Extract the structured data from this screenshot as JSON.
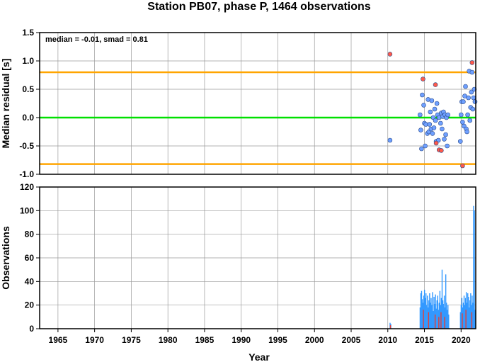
{
  "chart_data": {
    "title": "Station PB07, phase P, 1464 observations",
    "xlabel": "Year",
    "xlim": [
      1962.5,
      2022.0
    ],
    "xticks": [
      1965,
      1970,
      1975,
      1980,
      1985,
      1990,
      1995,
      2000,
      2005,
      2010,
      2015,
      2020
    ],
    "panels": [
      {
        "type": "scatter",
        "ylabel": "Median residual [s]",
        "ylim": [
          -1.0,
          1.5
        ],
        "yticks": [
          "-1.0",
          "-0.5",
          "0.0",
          "0.5",
          "1.0",
          "1.5"
        ],
        "grid": true,
        "annotation": "median = -0.01, smad = 0.81",
        "lines": [
          {
            "y": 0.8,
            "color": "#ffa500"
          },
          {
            "y": 0.0,
            "color": "#00e000"
          },
          {
            "y": -0.82,
            "color": "#ffa500"
          }
        ],
        "series": [
          {
            "marker_color": "#6fa0ff",
            "points": [
              [
                2010.3,
                -0.4
              ],
              [
                2014.4,
                0.05
              ],
              [
                2014.5,
                -0.22
              ],
              [
                2014.6,
                -0.55
              ],
              [
                2014.7,
                0.4
              ],
              [
                2014.9,
                0.22
              ],
              [
                2015.0,
                -0.1
              ],
              [
                2015.1,
                -0.5
              ],
              [
                2015.2,
                -0.12
              ],
              [
                2015.4,
                -0.28
              ],
              [
                2015.5,
                0.32
              ],
              [
                2015.6,
                -0.25
              ],
              [
                2015.7,
                -0.12
              ],
              [
                2015.8,
                0.1
              ],
              [
                2015.9,
                -0.2
              ],
              [
                2016.0,
                0.3
              ],
              [
                2016.1,
                -0.28
              ],
              [
                2016.2,
                0.0
              ],
              [
                2016.3,
                -0.18
              ],
              [
                2016.4,
                0.15
              ],
              [
                2016.5,
                -0.05
              ],
              [
                2016.6,
                -0.42
              ],
              [
                2016.7,
                0.25
              ],
              [
                2016.8,
                0.05
              ],
              [
                2016.9,
                -0.4
              ],
              [
                2017.0,
                0.0
              ],
              [
                2017.2,
                -0.1
              ],
              [
                2017.3,
                0.08
              ],
              [
                2017.4,
                -0.2
              ],
              [
                2017.5,
                0.02
              ],
              [
                2017.6,
                0.1
              ],
              [
                2017.7,
                -0.38
              ],
              [
                2017.8,
                0.05
              ],
              [
                2017.9,
                -0.3
              ],
              [
                2018.0,
                0.0
              ],
              [
                2018.1,
                -0.5
              ],
              [
                2018.2,
                0.05
              ],
              [
                2019.9,
                -0.42
              ],
              [
                2020.0,
                0.05
              ],
              [
                2020.1,
                0.28
              ],
              [
                2020.2,
                -0.08
              ],
              [
                2020.3,
                0.28
              ],
              [
                2020.4,
                -0.15
              ],
              [
                2020.5,
                0.38
              ],
              [
                2020.6,
                0.55
              ],
              [
                2020.7,
                -0.2
              ],
              [
                2020.8,
                -0.25
              ],
              [
                2020.9,
                0.05
              ],
              [
                2021.0,
                0.35
              ],
              [
                2021.1,
                0.82
              ],
              [
                2021.2,
                -0.05
              ],
              [
                2021.3,
                0.18
              ],
              [
                2021.4,
                0.45
              ],
              [
                2021.5,
                0.8
              ],
              [
                2021.6,
                0.15
              ],
              [
                2021.7,
                0.35
              ],
              [
                2021.8,
                0.5
              ],
              [
                2021.9,
                0.28
              ]
            ]
          },
          {
            "marker_color": "#ff5a4a",
            "points": [
              [
                2010.3,
                1.12
              ],
              [
                2014.8,
                0.68
              ],
              [
                2016.5,
                0.58
              ],
              [
                2016.6,
                -0.45
              ],
              [
                2017.0,
                -0.57
              ],
              [
                2017.3,
                -0.58
              ],
              [
                2020.2,
                -0.85
              ],
              [
                2021.5,
                0.97
              ]
            ]
          }
        ]
      },
      {
        "type": "bar",
        "ylabel": "Observations",
        "ylim": [
          0,
          120
        ],
        "yticks": [
          "0",
          "20",
          "40",
          "60",
          "80",
          "100",
          "120"
        ],
        "grid": true,
        "series": [
          {
            "color": "#3399ff",
            "bars": [
              [
                2010.3,
                5
              ],
              [
                2010.4,
                4
              ],
              [
                2014.4,
                18
              ],
              [
                2014.5,
                30
              ],
              [
                2014.6,
                32
              ],
              [
                2014.7,
                25
              ],
              [
                2014.8,
                22
              ],
              [
                2014.9,
                28
              ],
              [
                2015.0,
                33
              ],
              [
                2015.1,
                26
              ],
              [
                2015.2,
                30
              ],
              [
                2015.3,
                20
              ],
              [
                2015.4,
                28
              ],
              [
                2015.5,
                18
              ],
              [
                2015.6,
                24
              ],
              [
                2015.7,
                30
              ],
              [
                2015.8,
                22
              ],
              [
                2015.9,
                26
              ],
              [
                2016.0,
                20
              ],
              [
                2016.1,
                31
              ],
              [
                2016.2,
                15
              ],
              [
                2016.3,
                27
              ],
              [
                2016.4,
                21
              ],
              [
                2016.5,
                29
              ],
              [
                2016.6,
                17
              ],
              [
                2016.7,
                24
              ],
              [
                2016.8,
                28
              ],
              [
                2016.9,
                16
              ],
              [
                2017.0,
                22
              ],
              [
                2017.1,
                32
              ],
              [
                2017.2,
                20
              ],
              [
                2017.3,
                26
              ],
              [
                2017.4,
                50
              ],
              [
                2017.5,
                24
              ],
              [
                2017.6,
                21
              ],
              [
                2017.7,
                28
              ],
              [
                2017.8,
                18
              ],
              [
                2017.9,
                46
              ],
              [
                2018.0,
                22
              ],
              [
                2018.1,
                16
              ],
              [
                2018.2,
                20
              ],
              [
                2018.3,
                12
              ],
              [
                2019.9,
                14
              ],
              [
                2020.0,
                20
              ],
              [
                2020.1,
                26
              ],
              [
                2020.2,
                18
              ],
              [
                2020.3,
                22
              ],
              [
                2020.4,
                28
              ],
              [
                2020.5,
                20
              ],
              [
                2020.6,
                26
              ],
              [
                2020.7,
                31
              ],
              [
                2020.8,
                22
              ],
              [
                2020.9,
                30
              ],
              [
                2021.0,
                27
              ],
              [
                2021.1,
                18
              ],
              [
                2021.2,
                24
              ],
              [
                2021.3,
                30
              ],
              [
                2021.4,
                20
              ],
              [
                2021.5,
                28
              ],
              [
                2021.6,
                22
              ],
              [
                2021.7,
                104
              ],
              [
                2021.8,
                100
              ],
              [
                2021.9,
                16
              ]
            ]
          },
          {
            "color": "#e0403a",
            "bars": [
              [
                2010.35,
                3
              ],
              [
                2014.85,
                16
              ],
              [
                2015.55,
                14
              ],
              [
                2016.45,
                12
              ],
              [
                2016.95,
                10
              ],
              [
                2017.25,
                14
              ],
              [
                2017.75,
                10
              ],
              [
                2020.15,
                13
              ],
              [
                2020.65,
                16
              ],
              [
                2021.45,
                14
              ]
            ]
          }
        ]
      }
    ]
  }
}
